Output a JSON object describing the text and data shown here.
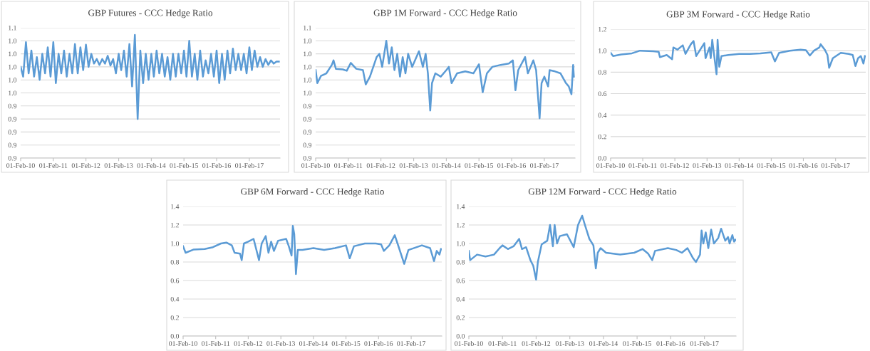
{
  "chart_data": [
    {
      "type": "line",
      "title": "GBP Futures - CCC Hedge Ratio",
      "grid": "y",
      "xlim": [
        "2010-02-01",
        "2018-01-10"
      ],
      "xticks": [
        {
          "value": "2010-02-01",
          "label": "01-Feb-10"
        },
        {
          "value": "2011-02-01",
          "label": "01-Feb-11"
        },
        {
          "value": "2012-02-01",
          "label": "01-Feb-12"
        },
        {
          "value": "2013-02-01",
          "label": "01-Feb-13"
        },
        {
          "value": "2014-02-01",
          "label": "01-Feb-14"
        },
        {
          "value": "2015-02-01",
          "label": "01-Feb-15"
        },
        {
          "value": "2016-02-01",
          "label": "01-Feb-16"
        },
        {
          "value": "2017-02-01",
          "label": "01-Feb-17"
        }
      ],
      "ylim": [
        0.86,
        1.06
      ],
      "yticks": [
        {
          "value": 0.86,
          "label": "0.9"
        },
        {
          "value": 0.88,
          "label": "0.9"
        },
        {
          "value": 0.9,
          "label": "0.9"
        },
        {
          "value": 0.92,
          "label": "0.9"
        },
        {
          "value": 0.94,
          "label": "0.9"
        },
        {
          "value": 0.96,
          "label": "1.0"
        },
        {
          "value": 0.98,
          "label": "1.0"
        },
        {
          "value": 1.0,
          "label": "1.0"
        },
        {
          "value": 1.02,
          "label": "1.0"
        },
        {
          "value": 1.04,
          "label": "1.0"
        },
        {
          "value": 1.06,
          "label": "1.1"
        }
      ],
      "series": [
        {
          "color": "#5b9bd5",
          "x": [
            "2010-02-01",
            "2010-03-01",
            "2010-04-01",
            "2010-05-01",
            "2010-06-01",
            "2010-07-01",
            "2010-08-01",
            "2010-09-01",
            "2010-10-01",
            "2010-11-01",
            "2010-12-01",
            "2011-01-01",
            "2011-02-01",
            "2011-03-01",
            "2011-04-01",
            "2011-05-01",
            "2011-06-01",
            "2011-07-01",
            "2011-08-01",
            "2011-09-01",
            "2011-10-01",
            "2011-11-01",
            "2011-12-01",
            "2012-01-01",
            "2012-02-01",
            "2012-03-01",
            "2012-04-01",
            "2012-05-01",
            "2012-06-01",
            "2012-07-01",
            "2012-08-01",
            "2012-09-01",
            "2012-10-01",
            "2012-11-01",
            "2012-12-01",
            "2013-01-01",
            "2013-02-01",
            "2013-03-01",
            "2013-04-01",
            "2013-05-01",
            "2013-06-01",
            "2013-07-01",
            "2013-08-01",
            "2013-09-01",
            "2013-10-01",
            "2013-11-01",
            "2013-12-01",
            "2014-01-01",
            "2014-02-01",
            "2014-03-01",
            "2014-04-01",
            "2014-05-01",
            "2014-06-01",
            "2014-07-01",
            "2014-08-01",
            "2014-09-01",
            "2014-10-01",
            "2014-11-01",
            "2014-12-01",
            "2015-01-01",
            "2015-02-01",
            "2015-03-01",
            "2015-04-01",
            "2015-05-01",
            "2015-06-01",
            "2015-07-01",
            "2015-08-01",
            "2015-09-01",
            "2015-10-01",
            "2015-11-01",
            "2015-12-01",
            "2016-01-01",
            "2016-02-01",
            "2016-03-01",
            "2016-04-01",
            "2016-05-01",
            "2016-06-01",
            "2016-07-01",
            "2016-08-01",
            "2016-09-01",
            "2016-10-01",
            "2016-11-01",
            "2016-12-01",
            "2017-01-01",
            "2017-02-01",
            "2017-03-01",
            "2017-04-01",
            "2017-05-01",
            "2017-06-01",
            "2017-07-01",
            "2017-08-01",
            "2017-09-01",
            "2017-10-01",
            "2017-11-01",
            "2017-12-01",
            "2017-12-28"
          ],
          "values": [
            1.0,
            0.985,
            1.038,
            0.99,
            1.025,
            0.985,
            1.015,
            0.98,
            1.02,
            0.99,
            1.03,
            0.985,
            1.038,
            0.975,
            1.02,
            0.99,
            1.025,
            0.985,
            1.02,
            0.99,
            1.035,
            0.99,
            1.03,
            0.995,
            1.034,
            1.0,
            1.02,
            1.005,
            1.012,
            1.003,
            1.012,
            1.005,
            1.017,
            1.002,
            1.012,
            0.99,
            1.02,
            0.995,
            1.025,
            0.985,
            1.035,
            0.97,
            1.049,
            0.92,
            1.025,
            0.975,
            1.02,
            0.98,
            1.02,
            0.985,
            1.025,
            0.99,
            1.02,
            0.985,
            1.015,
            0.98,
            1.02,
            0.985,
            1.02,
            0.99,
            1.025,
            0.985,
            1.04,
            0.985,
            1.02,
            0.98,
            1.025,
            0.985,
            1.01,
            0.99,
            1.02,
            0.985,
            1.025,
            0.975,
            1.02,
            0.98,
            1.025,
            0.99,
            1.028,
            0.995,
            1.02,
            0.995,
            1.02,
            0.99,
            1.03,
            0.995,
            1.025,
            1.0,
            1.015,
            1.0,
            1.012,
            1.003,
            1.01,
            1.005,
            1.008,
            1.008
          ]
        }
      ]
    },
    {
      "type": "line",
      "title": "GBP 1M Forward - CCC Hedge Ratio",
      "grid": "y",
      "xlim": [
        "2010-02-01",
        "2018-01-10"
      ],
      "xticks": [
        {
          "value": "2010-02-01",
          "label": "01-Feb-10"
        },
        {
          "value": "2011-02-01",
          "label": "01-Feb-11"
        },
        {
          "value": "2012-02-01",
          "label": "01-Feb-12"
        },
        {
          "value": "2013-02-01",
          "label": "01-Feb-13"
        },
        {
          "value": "2014-02-01",
          "label": "01-Feb-14"
        },
        {
          "value": "2015-02-01",
          "label": "01-Feb-15"
        },
        {
          "value": "2016-02-01",
          "label": "01-Feb-16"
        },
        {
          "value": "2017-02-01",
          "label": "01-Feb-17"
        }
      ],
      "ylim": [
        0.86,
        1.06
      ],
      "yticks": [
        {
          "value": 0.86,
          "label": "0.9"
        },
        {
          "value": 0.88,
          "label": "0.9"
        },
        {
          "value": 0.9,
          "label": "0.9"
        },
        {
          "value": 0.92,
          "label": "0.9"
        },
        {
          "value": 0.94,
          "label": "0.9"
        },
        {
          "value": 0.96,
          "label": "1.0"
        },
        {
          "value": 0.98,
          "label": "1.0"
        },
        {
          "value": 1.0,
          "label": "1.0"
        },
        {
          "value": 1.02,
          "label": "1.0"
        },
        {
          "value": 1.04,
          "label": "1.0"
        },
        {
          "value": 1.06,
          "label": "1.1"
        }
      ],
      "series": [
        {
          "color": "#5b9bd5",
          "x": [
            "2010-02-01",
            "2010-02-20",
            "2010-04-01",
            "2010-06-01",
            "2010-08-01",
            "2010-08-20",
            "2010-09-15",
            "2010-12-01",
            "2011-01-15",
            "2011-03-01",
            "2011-05-01",
            "2011-07-15",
            "2011-08-15",
            "2011-10-01",
            "2011-12-15",
            "2012-01-15",
            "2012-02-15",
            "2012-04-01",
            "2012-05-01",
            "2012-06-01",
            "2012-07-01",
            "2012-08-01",
            "2012-09-01",
            "2012-10-01",
            "2012-11-01",
            "2012-12-01",
            "2013-01-15",
            "2013-04-01",
            "2013-05-15",
            "2013-06-15",
            "2013-07-10",
            "2013-08-05",
            "2013-08-25",
            "2013-10-01",
            "2013-12-01",
            "2014-02-01",
            "2014-03-01",
            "2014-04-01",
            "2014-06-01",
            "2014-09-01",
            "2014-12-01",
            "2015-02-01",
            "2015-03-15",
            "2015-05-01",
            "2015-07-01",
            "2015-10-01",
            "2016-01-01",
            "2016-02-15",
            "2016-03-15",
            "2016-04-15",
            "2016-07-01",
            "2016-08-01",
            "2016-10-01",
            "2016-11-01",
            "2016-12-10",
            "2017-01-01",
            "2017-02-01",
            "2017-03-15",
            "2017-04-01",
            "2017-06-01",
            "2017-08-01",
            "2017-10-01",
            "2017-11-01",
            "2017-12-01",
            "2017-12-20",
            "2017-12-28"
          ],
          "values": [
            0.995,
            0.975,
            0.986,
            0.99,
            1.003,
            1.01,
            0.997,
            0.996,
            0.994,
            1.006,
            0.997,
            0.995,
            0.973,
            0.985,
            1.015,
            1.02,
            1.0,
            1.04,
            1.005,
            1.03,
            0.995,
            1.02,
            0.985,
            1.015,
            0.99,
            1.02,
            1.0,
            1.024,
            1.0,
            1.02,
            0.99,
            0.933,
            0.975,
            0.99,
            0.985,
            0.995,
            1.0,
            0.975,
            0.99,
            0.993,
            0.99,
            1.004,
            0.961,
            0.99,
            1.0,
            1.003,
            1.005,
            1.01,
            0.964,
            0.995,
            1.015,
            0.99,
            1.01,
            0.995,
            0.921,
            0.975,
            0.985,
            0.97,
            0.995,
            0.993,
            0.99,
            0.975,
            0.97,
            0.958,
            1.003,
            0.985
          ]
        }
      ]
    },
    {
      "type": "line",
      "title": "GBP 3M Forward - CCC Hedge Ratio",
      "grid": "y",
      "xlim": [
        "2010-02-01",
        "2018-01-10"
      ],
      "xticks": [
        {
          "value": "2010-02-01",
          "label": "01-Feb-10"
        },
        {
          "value": "2011-02-01",
          "label": "01-Feb-11"
        },
        {
          "value": "2012-02-01",
          "label": "01-Feb-12"
        },
        {
          "value": "2013-02-01",
          "label": "01-Feb-13"
        },
        {
          "value": "2014-02-01",
          "label": "01-Feb-14"
        },
        {
          "value": "2015-02-01",
          "label": "01-Feb-15"
        },
        {
          "value": "2016-02-01",
          "label": "01-Feb-16"
        },
        {
          "value": "2017-02-01",
          "label": "01-Feb-17"
        }
      ],
      "ylim": [
        0,
        1.2
      ],
      "yticks": [
        {
          "value": 0,
          "label": "0.0"
        },
        0.2,
        0.4,
        0.6,
        0.8,
        {
          "value": 1,
          "label": "1.0"
        },
        1.2
      ],
      "series": [
        {
          "color": "#5b9bd5",
          "x": [
            "2010-02-01",
            "2010-03-01",
            "2010-06-01",
            "2010-10-01",
            "2011-01-01",
            "2011-06-01",
            "2011-08-01",
            "2011-08-15",
            "2011-11-01",
            "2012-01-01",
            "2012-01-15",
            "2012-03-01",
            "2012-05-01",
            "2012-06-01",
            "2012-08-01",
            "2012-09-01",
            "2012-10-01",
            "2013-01-01",
            "2013-01-15",
            "2013-03-01",
            "2013-03-15",
            "2013-04-01",
            "2013-05-20",
            "2013-06-01",
            "2013-06-20",
            "2013-07-15",
            "2013-10-01",
            "2014-02-01",
            "2014-06-01",
            "2014-10-01",
            "2015-02-01",
            "2015-03-15",
            "2015-05-01",
            "2015-09-01",
            "2016-01-01",
            "2016-03-01",
            "2016-04-15",
            "2016-06-01",
            "2016-08-01",
            "2016-08-15",
            "2016-10-01",
            "2016-11-01",
            "2016-11-20",
            "2017-01-01",
            "2017-04-01",
            "2017-07-01",
            "2017-08-15",
            "2017-09-15",
            "2017-10-15",
            "2017-11-15",
            "2017-12-15",
            "2018-01-01"
          ],
          "values": [
            0.98,
            0.95,
            0.965,
            0.975,
            1.0,
            0.995,
            0.99,
            0.94,
            0.96,
            0.92,
            1.03,
            1.01,
            1.05,
            0.97,
            1.06,
            1.09,
            0.95,
            1.07,
            0.93,
            1.03,
            0.93,
            1.1,
            0.78,
            1.1,
            0.85,
            0.95,
            0.96,
            0.97,
            0.97,
            0.975,
            0.985,
            0.9,
            0.98,
            1.0,
            1.01,
            1.005,
            0.955,
            1.0,
            1.03,
            1.06,
            1.01,
            0.96,
            0.84,
            0.93,
            0.98,
            0.97,
            0.96,
            0.857,
            0.93,
            0.95,
            0.88,
            0.95
          ]
        }
      ]
    },
    {
      "type": "line",
      "title": "GBP 6M Forward - CCC Hedge Ratio",
      "grid": "y",
      "xlim": [
        "2010-02-01",
        "2018-01-10"
      ],
      "xticks": [
        {
          "value": "2010-02-01",
          "label": "01-Feb-10"
        },
        {
          "value": "2011-02-01",
          "label": "01-Feb-11"
        },
        {
          "value": "2012-02-01",
          "label": "01-Feb-12"
        },
        {
          "value": "2013-02-01",
          "label": "01-Feb-13"
        },
        {
          "value": "2014-02-01",
          "label": "01-Feb-14"
        },
        {
          "value": "2015-02-01",
          "label": "01-Feb-15"
        },
        {
          "value": "2016-02-01",
          "label": "01-Feb-16"
        },
        {
          "value": "2017-02-01",
          "label": "01-Feb-17"
        }
      ],
      "ylim": [
        0,
        1.4
      ],
      "yticks": [
        {
          "value": 0,
          "label": "0.0"
        },
        0.2,
        0.4,
        0.6,
        0.8,
        {
          "value": 1,
          "label": "1.0"
        },
        1.2,
        1.4
      ],
      "series": [
        {
          "color": "#5b9bd5",
          "x": [
            "2010-02-01",
            "2010-03-01",
            "2010-06-01",
            "2010-10-01",
            "2011-01-01",
            "2011-04-01",
            "2011-06-01",
            "2011-08-01",
            "2011-09-01",
            "2011-11-01",
            "2011-11-20",
            "2011-12-15",
            "2012-02-01",
            "2012-04-01",
            "2012-06-01",
            "2012-07-01",
            "2012-08-15",
            "2012-09-15",
            "2012-10-15",
            "2012-11-15",
            "2013-01-01",
            "2013-04-01",
            "2013-05-01",
            "2013-06-01",
            "2013-06-15",
            "2013-07-01",
            "2013-07-20",
            "2013-08-10",
            "2013-10-01",
            "2014-02-01",
            "2014-06-01",
            "2014-10-01",
            "2015-02-01",
            "2015-03-15",
            "2015-05-01",
            "2015-09-01",
            "2016-01-01",
            "2016-03-01",
            "2016-04-01",
            "2016-06-01",
            "2016-08-01",
            "2016-09-01",
            "2016-11-15",
            "2017-01-01",
            "2017-06-01",
            "2017-09-01",
            "2017-10-15",
            "2017-11-15",
            "2017-12-15",
            "2018-01-01"
          ],
          "values": [
            0.97,
            0.9,
            0.935,
            0.94,
            0.96,
            1.0,
            1.01,
            0.98,
            0.9,
            0.89,
            0.82,
            1.0,
            1.02,
            1.05,
            0.82,
            1.0,
            1.08,
            0.9,
            1.02,
            0.92,
            1.03,
            1.05,
            0.97,
            0.87,
            1.19,
            1.1,
            0.67,
            0.93,
            0.93,
            0.95,
            0.93,
            0.95,
            0.98,
            0.84,
            0.97,
            1.0,
            1.0,
            0.99,
            0.92,
            0.98,
            1.09,
            1.0,
            0.78,
            0.93,
            0.98,
            0.95,
            0.81,
            0.92,
            0.88,
            0.94
          ]
        }
      ]
    },
    {
      "type": "line",
      "title": "GBP 12M Forward - CCC Hedge Ratio",
      "grid": "y",
      "xlim": [
        "2010-02-01",
        "2018-01-10"
      ],
      "xticks": [
        {
          "value": "2010-02-01",
          "label": "01-Feb-10"
        },
        {
          "value": "2011-02-01",
          "label": "01-Feb-11"
        },
        {
          "value": "2012-02-01",
          "label": "01-Feb-12"
        },
        {
          "value": "2013-02-01",
          "label": "01-Feb-13"
        },
        {
          "value": "2014-02-01",
          "label": "01-Feb-14"
        },
        {
          "value": "2015-02-01",
          "label": "01-Feb-15"
        },
        {
          "value": "2016-02-01",
          "label": "01-Feb-16"
        },
        {
          "value": "2017-02-01",
          "label": "01-Feb-17"
        }
      ],
      "ylim": [
        0,
        1.4
      ],
      "yticks": [
        {
          "value": 0,
          "label": "0.0"
        },
        0.2,
        0.4,
        0.6,
        0.8,
        {
          "value": 1,
          "label": "1.0"
        },
        1.2,
        1.4
      ],
      "series": [
        {
          "color": "#5b9bd5",
          "x": [
            "2010-02-01",
            "2010-02-15",
            "2010-05-01",
            "2010-08-01",
            "2010-11-01",
            "2011-01-01",
            "2011-02-01",
            "2011-04-01",
            "2011-06-01",
            "2011-08-01",
            "2011-09-01",
            "2011-10-15",
            "2011-12-01",
            "2012-01-01",
            "2012-02-01",
            "2012-02-20",
            "2012-04-01",
            "2012-06-01",
            "2012-07-01",
            "2012-08-01",
            "2012-08-20",
            "2012-09-15",
            "2012-10-15",
            "2013-01-01",
            "2013-03-15",
            "2013-05-01",
            "2013-06-15",
            "2013-07-15",
            "2013-09-01",
            "2013-10-15",
            "2013-11-10",
            "2013-12-01",
            "2014-01-01",
            "2014-03-01",
            "2014-08-01",
            "2015-01-01",
            "2015-04-01",
            "2015-06-01",
            "2015-07-15",
            "2015-08-15",
            "2016-01-01",
            "2016-04-01",
            "2016-06-01",
            "2016-08-01",
            "2016-10-01",
            "2016-11-01",
            "2016-12-15",
            "2017-01-01",
            "2017-01-20",
            "2017-02-15",
            "2017-03-15",
            "2017-04-15",
            "2017-05-15",
            "2017-07-01",
            "2017-08-01",
            "2017-09-15",
            "2017-10-15",
            "2017-11-01",
            "2017-12-01",
            "2017-12-20",
            "2018-01-05"
          ],
          "values": [
            0.92,
            0.82,
            0.88,
            0.86,
            0.88,
            0.95,
            0.98,
            0.94,
            0.97,
            1.05,
            0.94,
            0.96,
            0.82,
            0.76,
            0.61,
            0.8,
            0.99,
            1.03,
            1.2,
            0.97,
            1.2,
            1.0,
            1.08,
            1.1,
            0.96,
            1.2,
            1.3,
            1.2,
            1.05,
            0.98,
            0.73,
            0.9,
            0.95,
            0.9,
            0.88,
            0.9,
            0.94,
            0.89,
            0.82,
            0.92,
            0.95,
            0.93,
            0.9,
            0.95,
            0.84,
            0.8,
            0.88,
            1.14,
            1.0,
            1.12,
            0.95,
            1.15,
            1.0,
            1.06,
            1.16,
            1.03,
            1.07,
            1.0,
            1.09,
            1.02,
            1.04
          ]
        }
      ]
    }
  ]
}
